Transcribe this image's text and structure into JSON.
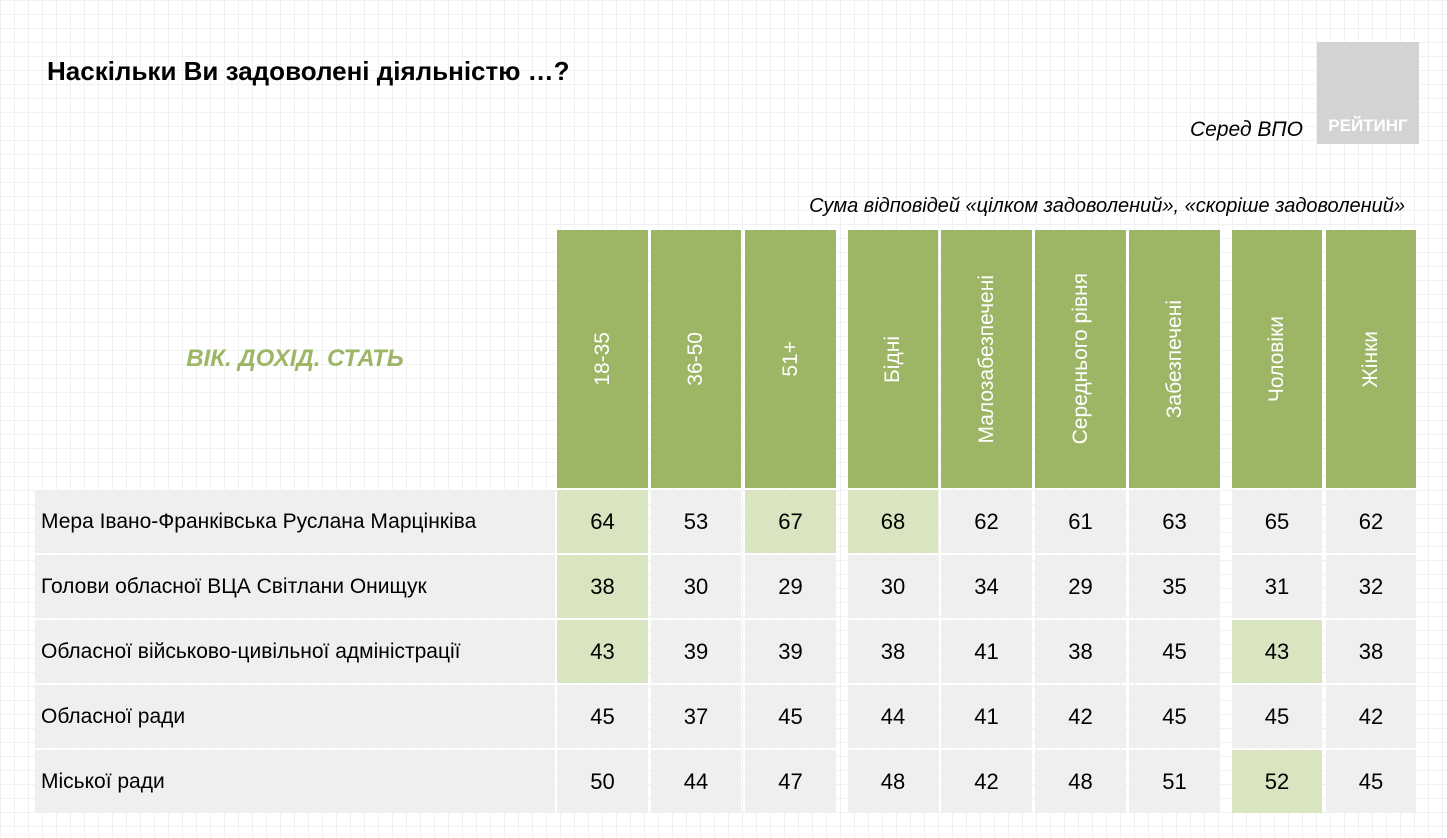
{
  "title": "Наскільки Ви задоволені діяльністю …?",
  "subtitle": "Серед ВПО",
  "logo_text": "РЕЙТИНГ",
  "note": "Сума відповідей «цілком задоволений», «скоріше задоволений»",
  "group_label": "ВІК. ДОХІД. СТАТЬ",
  "colors": {
    "header": "#9db665",
    "highlight": "#d9e4c0",
    "row": "#efefef"
  },
  "columns": [
    "18-35",
    "36-50",
    "51+",
    "Бідні",
    "Малозабезпечені",
    "Середнього рівня",
    "Забезпечені",
    "Чоловіки",
    "Жінки"
  ],
  "rows": [
    {
      "label": "Мера Івано-Франківська Руслана Марцінківа",
      "values": [
        64,
        53,
        67,
        68,
        62,
        61,
        63,
        65,
        62
      ],
      "highlight": [
        0,
        2,
        3
      ]
    },
    {
      "label": "Голови обласної ВЦА Світлани Онищук",
      "values": [
        38,
        30,
        29,
        30,
        34,
        29,
        35,
        31,
        32
      ],
      "highlight": [
        0
      ]
    },
    {
      "label": "Обласної військово-цивільної адміністрації",
      "values": [
        43,
        39,
        39,
        38,
        41,
        38,
        45,
        43,
        38
      ],
      "highlight": [
        0,
        7
      ]
    },
    {
      "label": "Обласної ради",
      "values": [
        45,
        37,
        45,
        44,
        41,
        42,
        45,
        45,
        42
      ],
      "highlight": []
    },
    {
      "label": "Міської ради",
      "values": [
        50,
        44,
        47,
        48,
        42,
        48,
        51,
        52,
        45
      ],
      "highlight": [
        7
      ]
    }
  ]
}
